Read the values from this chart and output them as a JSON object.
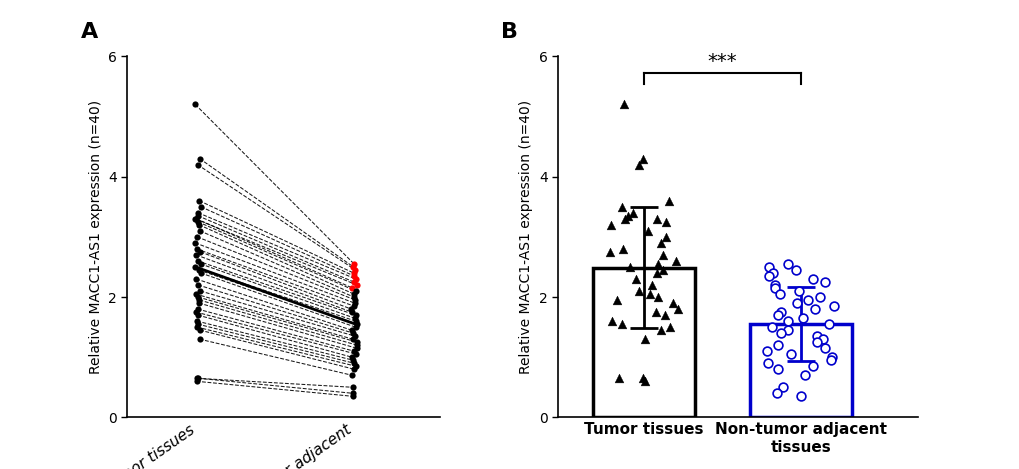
{
  "panel_A_tumor": [
    5.2,
    4.3,
    4.2,
    3.6,
    3.5,
    3.4,
    3.35,
    3.3,
    3.3,
    3.25,
    3.2,
    3.1,
    3.0,
    2.9,
    2.8,
    2.75,
    2.7,
    2.6,
    2.55,
    2.5,
    2.45,
    2.4,
    2.3,
    2.2,
    2.1,
    2.05,
    2.0,
    1.95,
    1.9,
    1.8,
    1.75,
    1.7,
    1.6,
    1.55,
    1.5,
    1.45,
    1.3,
    0.65,
    0.65,
    0.6
  ],
  "panel_A_normal": [
    2.55,
    2.5,
    2.45,
    2.4,
    2.35,
    2.3,
    2.25,
    2.2,
    2.15,
    2.1,
    2.05,
    2.0,
    1.95,
    1.9,
    1.85,
    1.8,
    1.75,
    1.7,
    1.65,
    1.6,
    1.55,
    1.5,
    1.45,
    1.4,
    1.35,
    1.3,
    1.25,
    1.2,
    1.15,
    1.1,
    1.05,
    1.0,
    0.95,
    0.9,
    0.85,
    0.8,
    0.7,
    0.5,
    0.4,
    0.35
  ],
  "red_indices_normal": [
    0,
    1,
    2,
    3,
    4,
    5,
    6,
    7,
    8
  ],
  "panel_B_tumor": [
    5.2,
    4.3,
    4.2,
    3.6,
    3.5,
    3.4,
    3.35,
    3.3,
    3.3,
    3.25,
    3.2,
    3.1,
    3.0,
    2.9,
    2.8,
    2.75,
    2.7,
    2.6,
    2.55,
    2.5,
    2.45,
    2.4,
    2.3,
    2.2,
    2.1,
    2.05,
    2.0,
    1.95,
    1.9,
    1.8,
    1.75,
    1.7,
    1.6,
    1.55,
    1.5,
    1.45,
    1.3,
    0.65,
    0.65,
    0.6
  ],
  "panel_B_normal": [
    2.55,
    2.5,
    2.45,
    2.4,
    2.35,
    2.3,
    2.25,
    2.2,
    2.15,
    2.1,
    2.05,
    2.0,
    1.95,
    1.9,
    1.85,
    1.8,
    1.75,
    1.7,
    1.65,
    1.6,
    1.55,
    1.5,
    1.45,
    1.4,
    1.35,
    1.3,
    1.25,
    1.2,
    1.15,
    1.1,
    1.05,
    1.0,
    0.95,
    0.9,
    0.85,
    0.8,
    0.7,
    0.5,
    0.4,
    0.35
  ],
  "ylabel": "Relative MACC1-AS1 expression (n=40)",
  "xlabel_A_1": "Tumor tissues",
  "xlabel_A_2": "Non-tumor adjacent",
  "xlabel_B_1": "Tumor tissues",
  "xlabel_B_2": "Non-tumor adjacent\ntissues",
  "panel_A_label": "A",
  "panel_B_label": "B",
  "significance_text": "***",
  "ylim": [
    0,
    6
  ],
  "yticks": [
    0,
    2,
    4,
    6
  ],
  "tumor_color": "#000000",
  "red_color": "#ff0000",
  "blue_color": "#0000cc",
  "bar_edgewidth": 2.5,
  "line_lw": 0.75,
  "dot_size": 20
}
